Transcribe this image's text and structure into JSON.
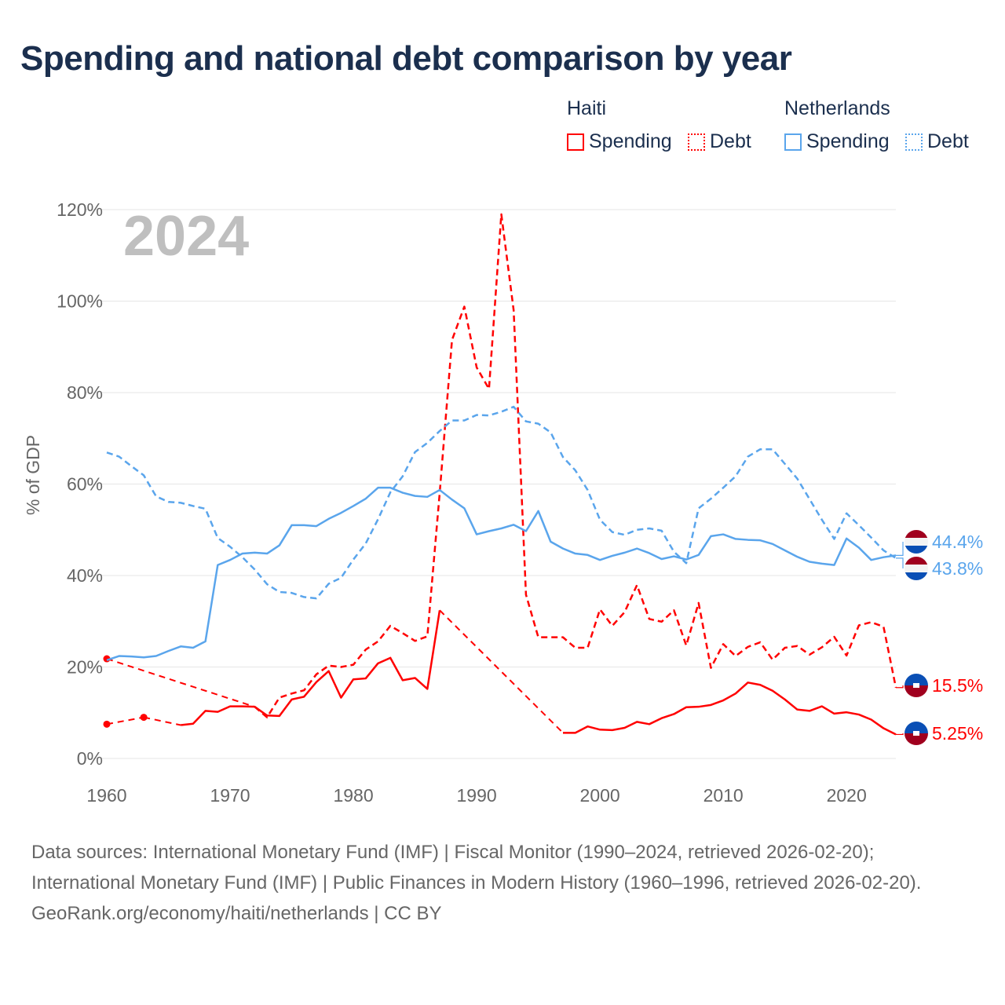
{
  "title": "Spending and national debt comparison by year",
  "legend": {
    "groups": [
      {
        "country": "Haiti",
        "items": [
          "Spending",
          "Debt"
        ],
        "color": "#ff0000"
      },
      {
        "country": "Netherlands",
        "items": [
          "Spending",
          "Debt"
        ],
        "color": "#5aa5ec"
      }
    ]
  },
  "footer": {
    "sources": "Data sources: International Monetary Fund (IMF) | Fiscal Monitor (1990–2024, retrieved 2026-02-20); International Monetary Fund (IMF) | Public Finances in Modern History (1960–1996, retrieved 2026-02-20).",
    "credit": "GeoRank.org/economy/haiti/netherlands | CC BY"
  },
  "chart_data": {
    "type": "line",
    "title": "Spending and national debt comparison by year",
    "year_label": "2024",
    "ylabel": "% of GDP",
    "xlabel": "",
    "xlim": [
      1960,
      2024
    ],
    "ylim": [
      0,
      120
    ],
    "xticks": [
      "1960",
      "1970",
      "1980",
      "1990",
      "2000",
      "2010",
      "2020"
    ],
    "yticks": [
      "0%",
      "20%",
      "40%",
      "60%",
      "80%",
      "100%",
      "120%"
    ],
    "grid": true,
    "legend_position": "top-right",
    "start_year": 1960,
    "series": [
      {
        "name": "Haiti Spending",
        "country": "Haiti",
        "kind": "spending",
        "color": "#ff0000",
        "end_label": "5.25%",
        "values": [
          7.5,
          null,
          null,
          9.0,
          null,
          null,
          7.3,
          7.6,
          10.4,
          10.2,
          11.4,
          11.4,
          11.3,
          9.4,
          9.3,
          12.9,
          13.5,
          16.7,
          19.1,
          13.3,
          17.3,
          17.5,
          20.8,
          22.0,
          17.1,
          17.6,
          15.2,
          32.4,
          null,
          null,
          null,
          null,
          null,
          null,
          null,
          null,
          null,
          5.6,
          5.6,
          7.0,
          6.3,
          6.2,
          6.7,
          8.0,
          7.5,
          8.8,
          9.7,
          11.2,
          11.3,
          11.7,
          12.7,
          14.2,
          16.6,
          16.1,
          14.8,
          12.9,
          10.7,
          10.4,
          11.4,
          9.8,
          10.1,
          9.6,
          8.5,
          6.6,
          5.25
        ]
      },
      {
        "name": "Haiti Debt",
        "country": "Haiti",
        "kind": "debt",
        "color": "#ff0000",
        "end_label": "15.5%",
        "values": [
          21.8,
          null,
          null,
          null,
          null,
          null,
          null,
          null,
          null,
          null,
          null,
          null,
          11.3,
          9.0,
          13.3,
          14.2,
          14.9,
          18.4,
          20.3,
          20.0,
          20.5,
          23.8,
          25.6,
          29.0,
          27.4,
          25.7,
          26.7,
          58.0,
          91.5,
          98.8,
          85.5,
          80.8,
          119.0,
          98.0,
          35.8,
          26.5,
          26.5,
          26.5,
          24.2,
          24.2,
          32.6,
          29.0,
          32.0,
          37.9,
          30.5,
          29.9,
          32.4,
          24.7,
          34.0,
          19.8,
          25.0,
          22.4,
          24.4,
          25.4,
          21.6,
          24.2,
          24.6,
          22.7,
          24.3,
          26.6,
          22.5,
          29.1,
          29.8,
          28.8,
          15.5
        ]
      },
      {
        "name": "Netherlands Spending",
        "country": "Netherlands",
        "kind": "spending",
        "color": "#5aa5ec",
        "end_label": "44.4%",
        "values": [
          21.5,
          22.4,
          22.3,
          22.1,
          22.4,
          23.5,
          24.5,
          24.2,
          25.6,
          42.3,
          43.4,
          44.8,
          45.0,
          44.8,
          46.6,
          51.0,
          51.0,
          50.8,
          52.4,
          53.7,
          55.2,
          56.8,
          59.2,
          59.2,
          58.1,
          57.4,
          57.2,
          58.7,
          56.6,
          54.7,
          49.0,
          49.7,
          50.3,
          51.1,
          49.7,
          54.1,
          47.4,
          45.9,
          44.8,
          44.5,
          43.4,
          44.3,
          45.0,
          45.9,
          44.9,
          43.6,
          44.2,
          43.5,
          44.5,
          48.6,
          49.0,
          48.0,
          47.8,
          47.7,
          46.9,
          45.5,
          44.1,
          43.0,
          42.6,
          42.3,
          48.1,
          46.1,
          43.4,
          44.0,
          44.4
        ]
      },
      {
        "name": "Netherlands Debt",
        "country": "Netherlands",
        "kind": "debt",
        "color": "#5aa5ec",
        "end_label": "43.8%",
        "values": [
          66.9,
          66.0,
          63.9,
          61.9,
          57.3,
          56.1,
          55.9,
          55.2,
          54.6,
          48.2,
          46.3,
          44.0,
          41.3,
          38.1,
          36.4,
          36.2,
          35.3,
          35.0,
          38.2,
          39.5,
          43.5,
          47.0,
          52.3,
          58.2,
          61.7,
          67.0,
          69.0,
          71.6,
          73.9,
          73.9,
          75.1,
          75.0,
          75.8,
          76.9,
          73.7,
          73.2,
          71.3,
          65.9,
          63.0,
          58.7,
          52.2,
          49.5,
          48.9,
          50.0,
          50.3,
          49.8,
          45.2,
          42.7,
          54.7,
          56.8,
          59.2,
          61.7,
          66.0,
          67.6,
          67.6,
          64.4,
          61.2,
          56.7,
          52.2,
          48.0,
          53.6,
          51.0,
          48.3,
          45.5,
          43.8
        ]
      }
    ]
  }
}
